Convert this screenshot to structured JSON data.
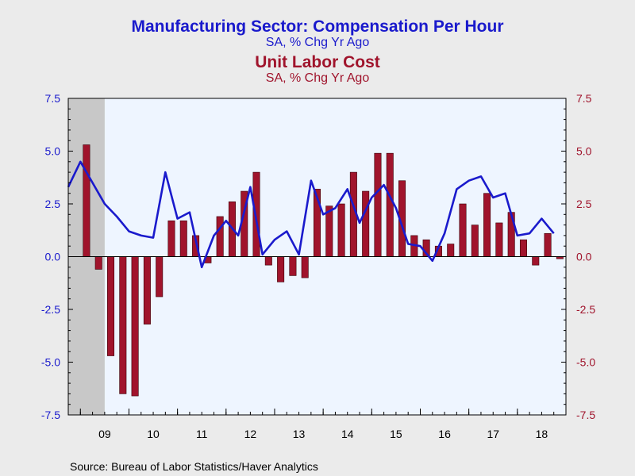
{
  "titles": {
    "line_title": "Manufacturing Sector: Compensation Per Hour",
    "line_subtitle": "SA, % Chg Yr Ago",
    "bar_title": "Unit Labor Cost",
    "bar_subtitle": "SA, % Chg Yr Ago"
  },
  "source": "Source:  Bureau of Labor Statistics/Haver Analytics",
  "colors": {
    "line": "#1a1acc",
    "bar": "#a0142c",
    "plot_bg": "#eef5ff",
    "recession": "#c8c8c8",
    "background": "#ebebeb"
  },
  "chart_data": {
    "type": "bar+line",
    "x_tick_labels": [
      "09",
      "10",
      "11",
      "12",
      "13",
      "14",
      "15",
      "16",
      "17",
      "18"
    ],
    "quarters": [
      "2009Q1",
      "2009Q2",
      "2009Q3",
      "2009Q4",
      "2010Q1",
      "2010Q2",
      "2010Q3",
      "2010Q4",
      "2011Q1",
      "2011Q2",
      "2011Q3",
      "2011Q4",
      "2012Q1",
      "2012Q2",
      "2012Q3",
      "2012Q4",
      "2013Q1",
      "2013Q2",
      "2013Q3",
      "2013Q4",
      "2014Q1",
      "2014Q2",
      "2014Q3",
      "2014Q4",
      "2015Q1",
      "2015Q2",
      "2015Q3",
      "2015Q4",
      "2016Q1",
      "2016Q2",
      "2016Q3",
      "2016Q4",
      "2017Q1",
      "2017Q2",
      "2017Q3",
      "2017Q4",
      "2018Q1",
      "2018Q2",
      "2018Q3",
      "2018Q4"
    ],
    "series": [
      {
        "name": "Unit Labor Cost",
        "type": "bar",
        "axis": "right",
        "values": [
          5.3,
          -0.6,
          -4.7,
          -6.5,
          -6.6,
          -3.2,
          -1.9,
          1.7,
          1.7,
          1.0,
          -0.3,
          1.9,
          2.6,
          3.1,
          4.0,
          -0.4,
          -1.2,
          -0.9,
          -1.0,
          3.2,
          2.4,
          2.5,
          4.0,
          3.1,
          4.9,
          4.9,
          3.6,
          1.0,
          0.8,
          0.5,
          0.6,
          2.5,
          1.5,
          3.0,
          1.6,
          2.1,
          0.8,
          -0.4,
          1.1,
          -0.1
        ]
      },
      {
        "name": "Manufacturing Sector: Compensation Per Hour",
        "type": "line",
        "axis": "left",
        "x_start": 2008.75,
        "values": [
          3.3,
          4.5,
          3.5,
          2.5,
          1.9,
          1.2,
          1.0,
          0.9,
          4.0,
          1.8,
          2.1,
          -0.5,
          1.0,
          1.7,
          1.0,
          3.3,
          0.1,
          0.8,
          1.2,
          0.1,
          3.6,
          2.0,
          2.3,
          3.2,
          1.6,
          2.8,
          3.4,
          2.3,
          0.6,
          0.5,
          -0.2,
          1.1,
          3.2,
          3.6,
          3.8,
          2.8,
          3.0,
          1.0,
          1.1,
          1.8,
          1.1
        ]
      }
    ],
    "y_left": {
      "min": -7.5,
      "max": 7.5,
      "ticks": [
        "7.5",
        "5.0",
        "2.5",
        "0.0",
        "-2.5",
        "-5.0",
        "-7.5"
      ]
    },
    "y_right": {
      "min": -7.5,
      "max": 7.5,
      "ticks": [
        "7.5",
        "5.0",
        "2.5",
        "0.0",
        "-2.5",
        "-5.0",
        "-7.5"
      ]
    },
    "x_range": [
      "2008.75",
      "2019.00"
    ],
    "recession_shading": {
      "start": "2008.75",
      "end": "2009.50"
    },
    "grid": false,
    "legend": "none"
  }
}
